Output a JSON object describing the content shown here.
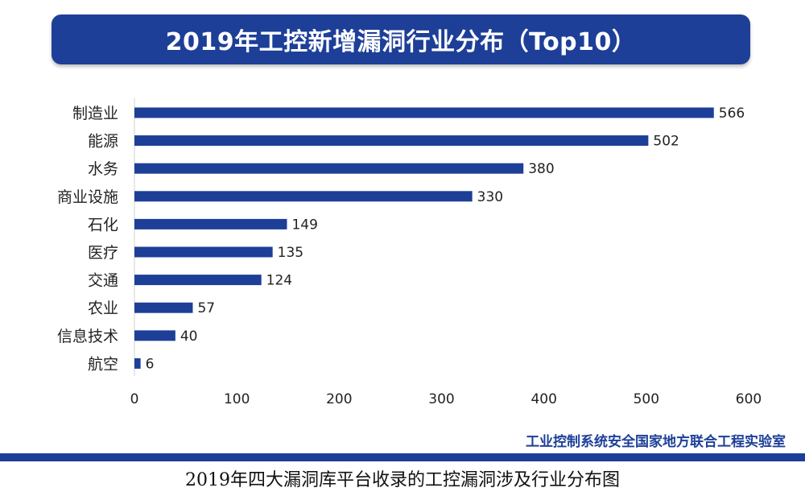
{
  "colors": {
    "brand": "#1d3f98",
    "bar": "#1d3f98",
    "text": "#222222"
  },
  "chart_data": {
    "type": "bar",
    "orientation": "horizontal",
    "title": "2019年工控新增漏洞行业分布（Top10）",
    "categories": [
      "制造业",
      "能源",
      "水务",
      "商业设施",
      "石化",
      "医疗",
      "交通",
      "农业",
      "信息技术",
      "航空"
    ],
    "values": [
      566,
      502,
      380,
      330,
      149,
      135,
      124,
      57,
      40,
      6
    ],
    "xlim": [
      0,
      600
    ],
    "xticks": [
      0,
      100,
      200,
      300,
      400,
      500,
      600
    ],
    "xlabel": "",
    "ylabel": "",
    "grid": false,
    "legend": "none",
    "data_labels": true
  },
  "source": "工业控制系统安全国家地方联合工程实验室",
  "caption": "2019年四大漏洞库平台收录的工控漏洞涉及行业分布图"
}
